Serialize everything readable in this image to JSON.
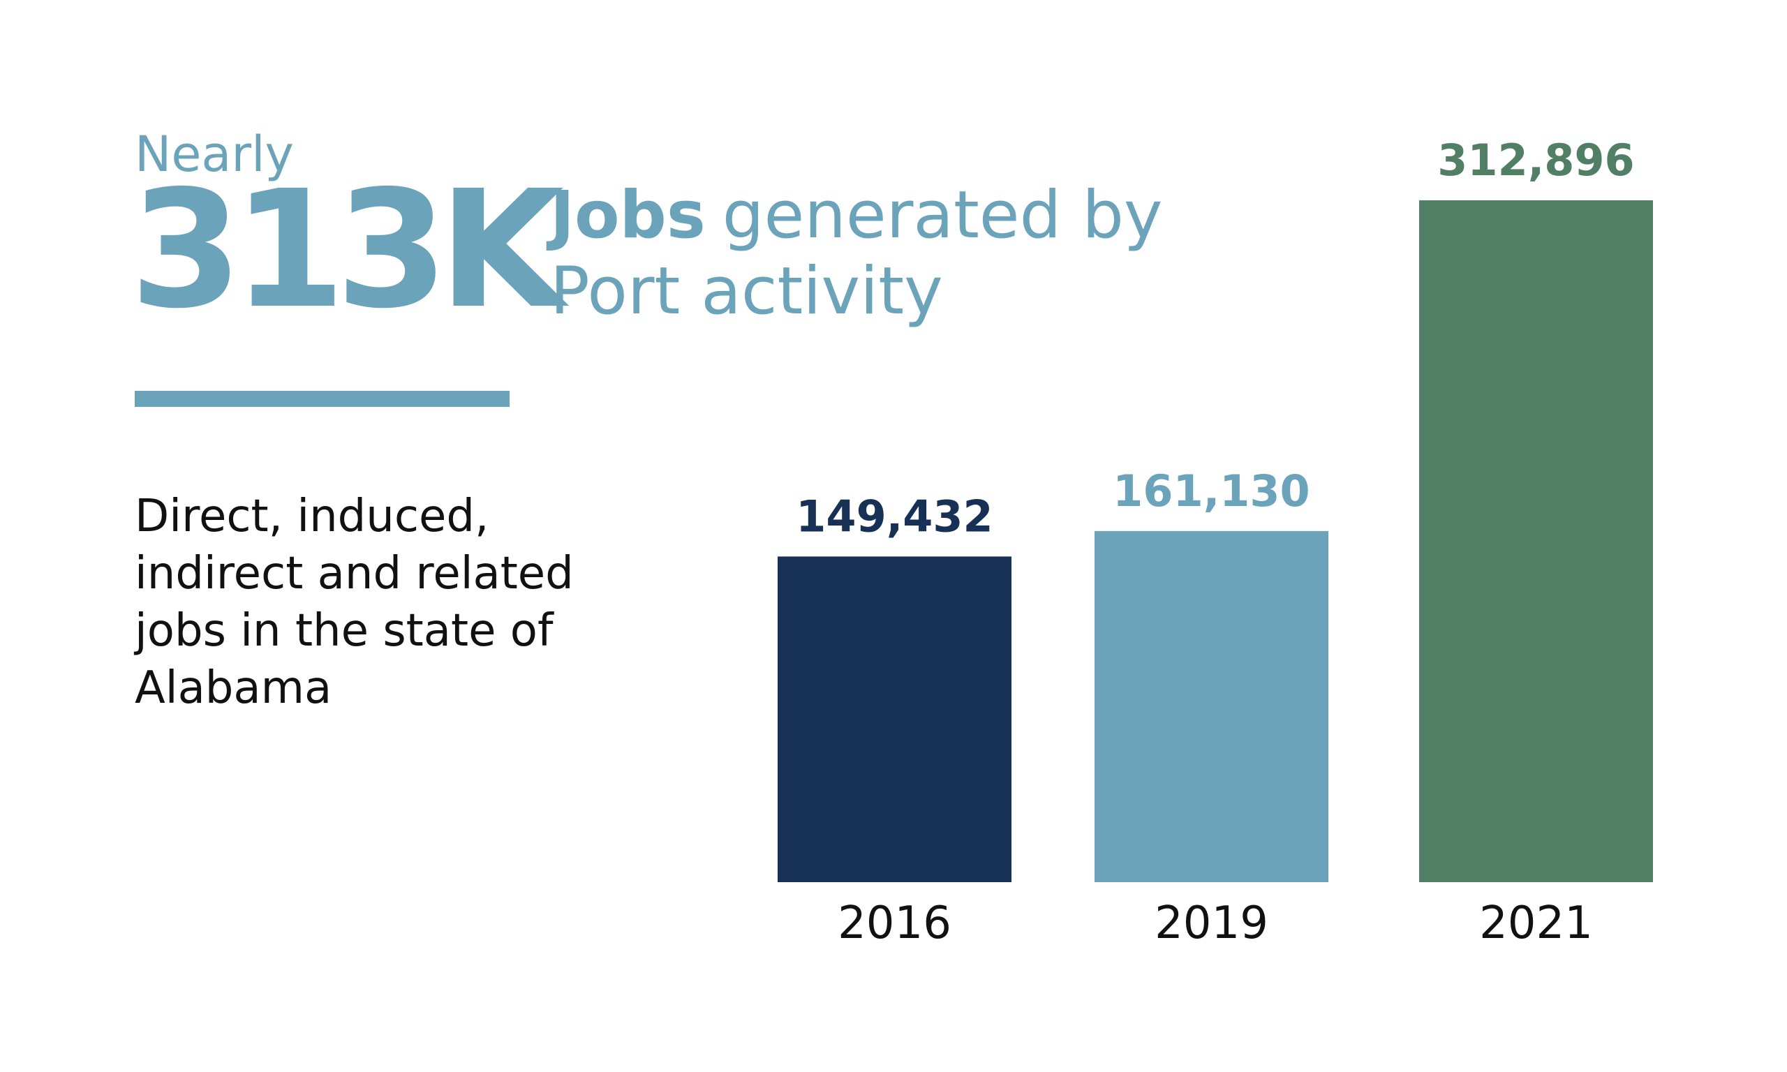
{
  "chart_data": {
    "type": "bar",
    "kicker": "Nearly",
    "headline": "313K",
    "title_bold": "Jobs",
    "title_rest": "generated by",
    "title_line2": "Port activity",
    "description": [
      "Direct, induced,",
      "indirect and related",
      "jobs in the state of",
      "Alabama"
    ],
    "categories": [
      "2016",
      "2019",
      "2021"
    ],
    "values": [
      149432,
      161130,
      312896
    ],
    "value_labels": [
      "149,432",
      "161,130",
      "312,896"
    ],
    "colors": [
      "#173156",
      "#6ba3bb",
      "#517f65"
    ],
    "accent_color": "#6ba3bb"
  }
}
